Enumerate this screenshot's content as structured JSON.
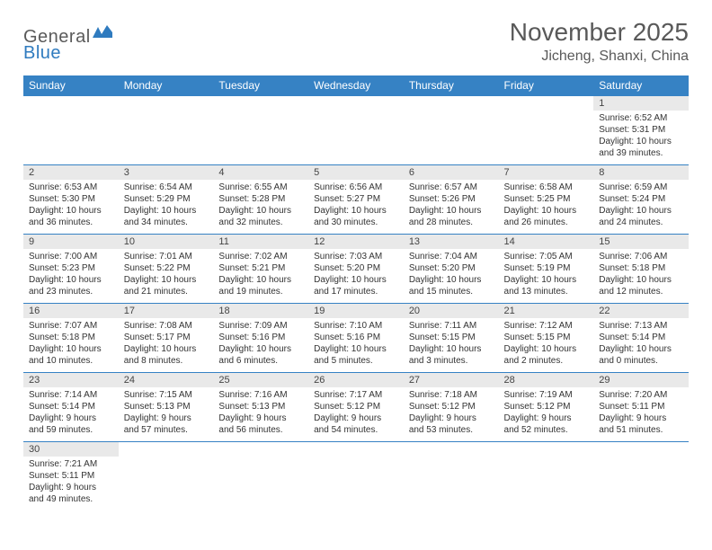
{
  "logo": {
    "part1": "General",
    "part2": "Blue"
  },
  "title": "November 2025",
  "location": "Jicheng, Shanxi, China",
  "colors": {
    "header_bg": "#3682c4",
    "header_text": "#ffffff",
    "daynum_bg": "#e9e9e9",
    "border": "#3682c4",
    "text": "#333333",
    "title_text": "#595959",
    "logo_gray": "#5a5a5a",
    "logo_blue": "#2f7bbf"
  },
  "weekdays": [
    "Sunday",
    "Monday",
    "Tuesday",
    "Wednesday",
    "Thursday",
    "Friday",
    "Saturday"
  ],
  "weeks": [
    [
      null,
      null,
      null,
      null,
      null,
      null,
      {
        "n": "1",
        "sr": "Sunrise: 6:52 AM",
        "ss": "Sunset: 5:31 PM",
        "dl": "Daylight: 10 hours and 39 minutes."
      }
    ],
    [
      {
        "n": "2",
        "sr": "Sunrise: 6:53 AM",
        "ss": "Sunset: 5:30 PM",
        "dl": "Daylight: 10 hours and 36 minutes."
      },
      {
        "n": "3",
        "sr": "Sunrise: 6:54 AM",
        "ss": "Sunset: 5:29 PM",
        "dl": "Daylight: 10 hours and 34 minutes."
      },
      {
        "n": "4",
        "sr": "Sunrise: 6:55 AM",
        "ss": "Sunset: 5:28 PM",
        "dl": "Daylight: 10 hours and 32 minutes."
      },
      {
        "n": "5",
        "sr": "Sunrise: 6:56 AM",
        "ss": "Sunset: 5:27 PM",
        "dl": "Daylight: 10 hours and 30 minutes."
      },
      {
        "n": "6",
        "sr": "Sunrise: 6:57 AM",
        "ss": "Sunset: 5:26 PM",
        "dl": "Daylight: 10 hours and 28 minutes."
      },
      {
        "n": "7",
        "sr": "Sunrise: 6:58 AM",
        "ss": "Sunset: 5:25 PM",
        "dl": "Daylight: 10 hours and 26 minutes."
      },
      {
        "n": "8",
        "sr": "Sunrise: 6:59 AM",
        "ss": "Sunset: 5:24 PM",
        "dl": "Daylight: 10 hours and 24 minutes."
      }
    ],
    [
      {
        "n": "9",
        "sr": "Sunrise: 7:00 AM",
        "ss": "Sunset: 5:23 PM",
        "dl": "Daylight: 10 hours and 23 minutes."
      },
      {
        "n": "10",
        "sr": "Sunrise: 7:01 AM",
        "ss": "Sunset: 5:22 PM",
        "dl": "Daylight: 10 hours and 21 minutes."
      },
      {
        "n": "11",
        "sr": "Sunrise: 7:02 AM",
        "ss": "Sunset: 5:21 PM",
        "dl": "Daylight: 10 hours and 19 minutes."
      },
      {
        "n": "12",
        "sr": "Sunrise: 7:03 AM",
        "ss": "Sunset: 5:20 PM",
        "dl": "Daylight: 10 hours and 17 minutes."
      },
      {
        "n": "13",
        "sr": "Sunrise: 7:04 AM",
        "ss": "Sunset: 5:20 PM",
        "dl": "Daylight: 10 hours and 15 minutes."
      },
      {
        "n": "14",
        "sr": "Sunrise: 7:05 AM",
        "ss": "Sunset: 5:19 PM",
        "dl": "Daylight: 10 hours and 13 minutes."
      },
      {
        "n": "15",
        "sr": "Sunrise: 7:06 AM",
        "ss": "Sunset: 5:18 PM",
        "dl": "Daylight: 10 hours and 12 minutes."
      }
    ],
    [
      {
        "n": "16",
        "sr": "Sunrise: 7:07 AM",
        "ss": "Sunset: 5:18 PM",
        "dl": "Daylight: 10 hours and 10 minutes."
      },
      {
        "n": "17",
        "sr": "Sunrise: 7:08 AM",
        "ss": "Sunset: 5:17 PM",
        "dl": "Daylight: 10 hours and 8 minutes."
      },
      {
        "n": "18",
        "sr": "Sunrise: 7:09 AM",
        "ss": "Sunset: 5:16 PM",
        "dl": "Daylight: 10 hours and 6 minutes."
      },
      {
        "n": "19",
        "sr": "Sunrise: 7:10 AM",
        "ss": "Sunset: 5:16 PM",
        "dl": "Daylight: 10 hours and 5 minutes."
      },
      {
        "n": "20",
        "sr": "Sunrise: 7:11 AM",
        "ss": "Sunset: 5:15 PM",
        "dl": "Daylight: 10 hours and 3 minutes."
      },
      {
        "n": "21",
        "sr": "Sunrise: 7:12 AM",
        "ss": "Sunset: 5:15 PM",
        "dl": "Daylight: 10 hours and 2 minutes."
      },
      {
        "n": "22",
        "sr": "Sunrise: 7:13 AM",
        "ss": "Sunset: 5:14 PM",
        "dl": "Daylight: 10 hours and 0 minutes."
      }
    ],
    [
      {
        "n": "23",
        "sr": "Sunrise: 7:14 AM",
        "ss": "Sunset: 5:14 PM",
        "dl": "Daylight: 9 hours and 59 minutes."
      },
      {
        "n": "24",
        "sr": "Sunrise: 7:15 AM",
        "ss": "Sunset: 5:13 PM",
        "dl": "Daylight: 9 hours and 57 minutes."
      },
      {
        "n": "25",
        "sr": "Sunrise: 7:16 AM",
        "ss": "Sunset: 5:13 PM",
        "dl": "Daylight: 9 hours and 56 minutes."
      },
      {
        "n": "26",
        "sr": "Sunrise: 7:17 AM",
        "ss": "Sunset: 5:12 PM",
        "dl": "Daylight: 9 hours and 54 minutes."
      },
      {
        "n": "27",
        "sr": "Sunrise: 7:18 AM",
        "ss": "Sunset: 5:12 PM",
        "dl": "Daylight: 9 hours and 53 minutes."
      },
      {
        "n": "28",
        "sr": "Sunrise: 7:19 AM",
        "ss": "Sunset: 5:12 PM",
        "dl": "Daylight: 9 hours and 52 minutes."
      },
      {
        "n": "29",
        "sr": "Sunrise: 7:20 AM",
        "ss": "Sunset: 5:11 PM",
        "dl": "Daylight: 9 hours and 51 minutes."
      }
    ],
    [
      {
        "n": "30",
        "sr": "Sunrise: 7:21 AM",
        "ss": "Sunset: 5:11 PM",
        "dl": "Daylight: 9 hours and 49 minutes."
      },
      null,
      null,
      null,
      null,
      null,
      null
    ]
  ]
}
